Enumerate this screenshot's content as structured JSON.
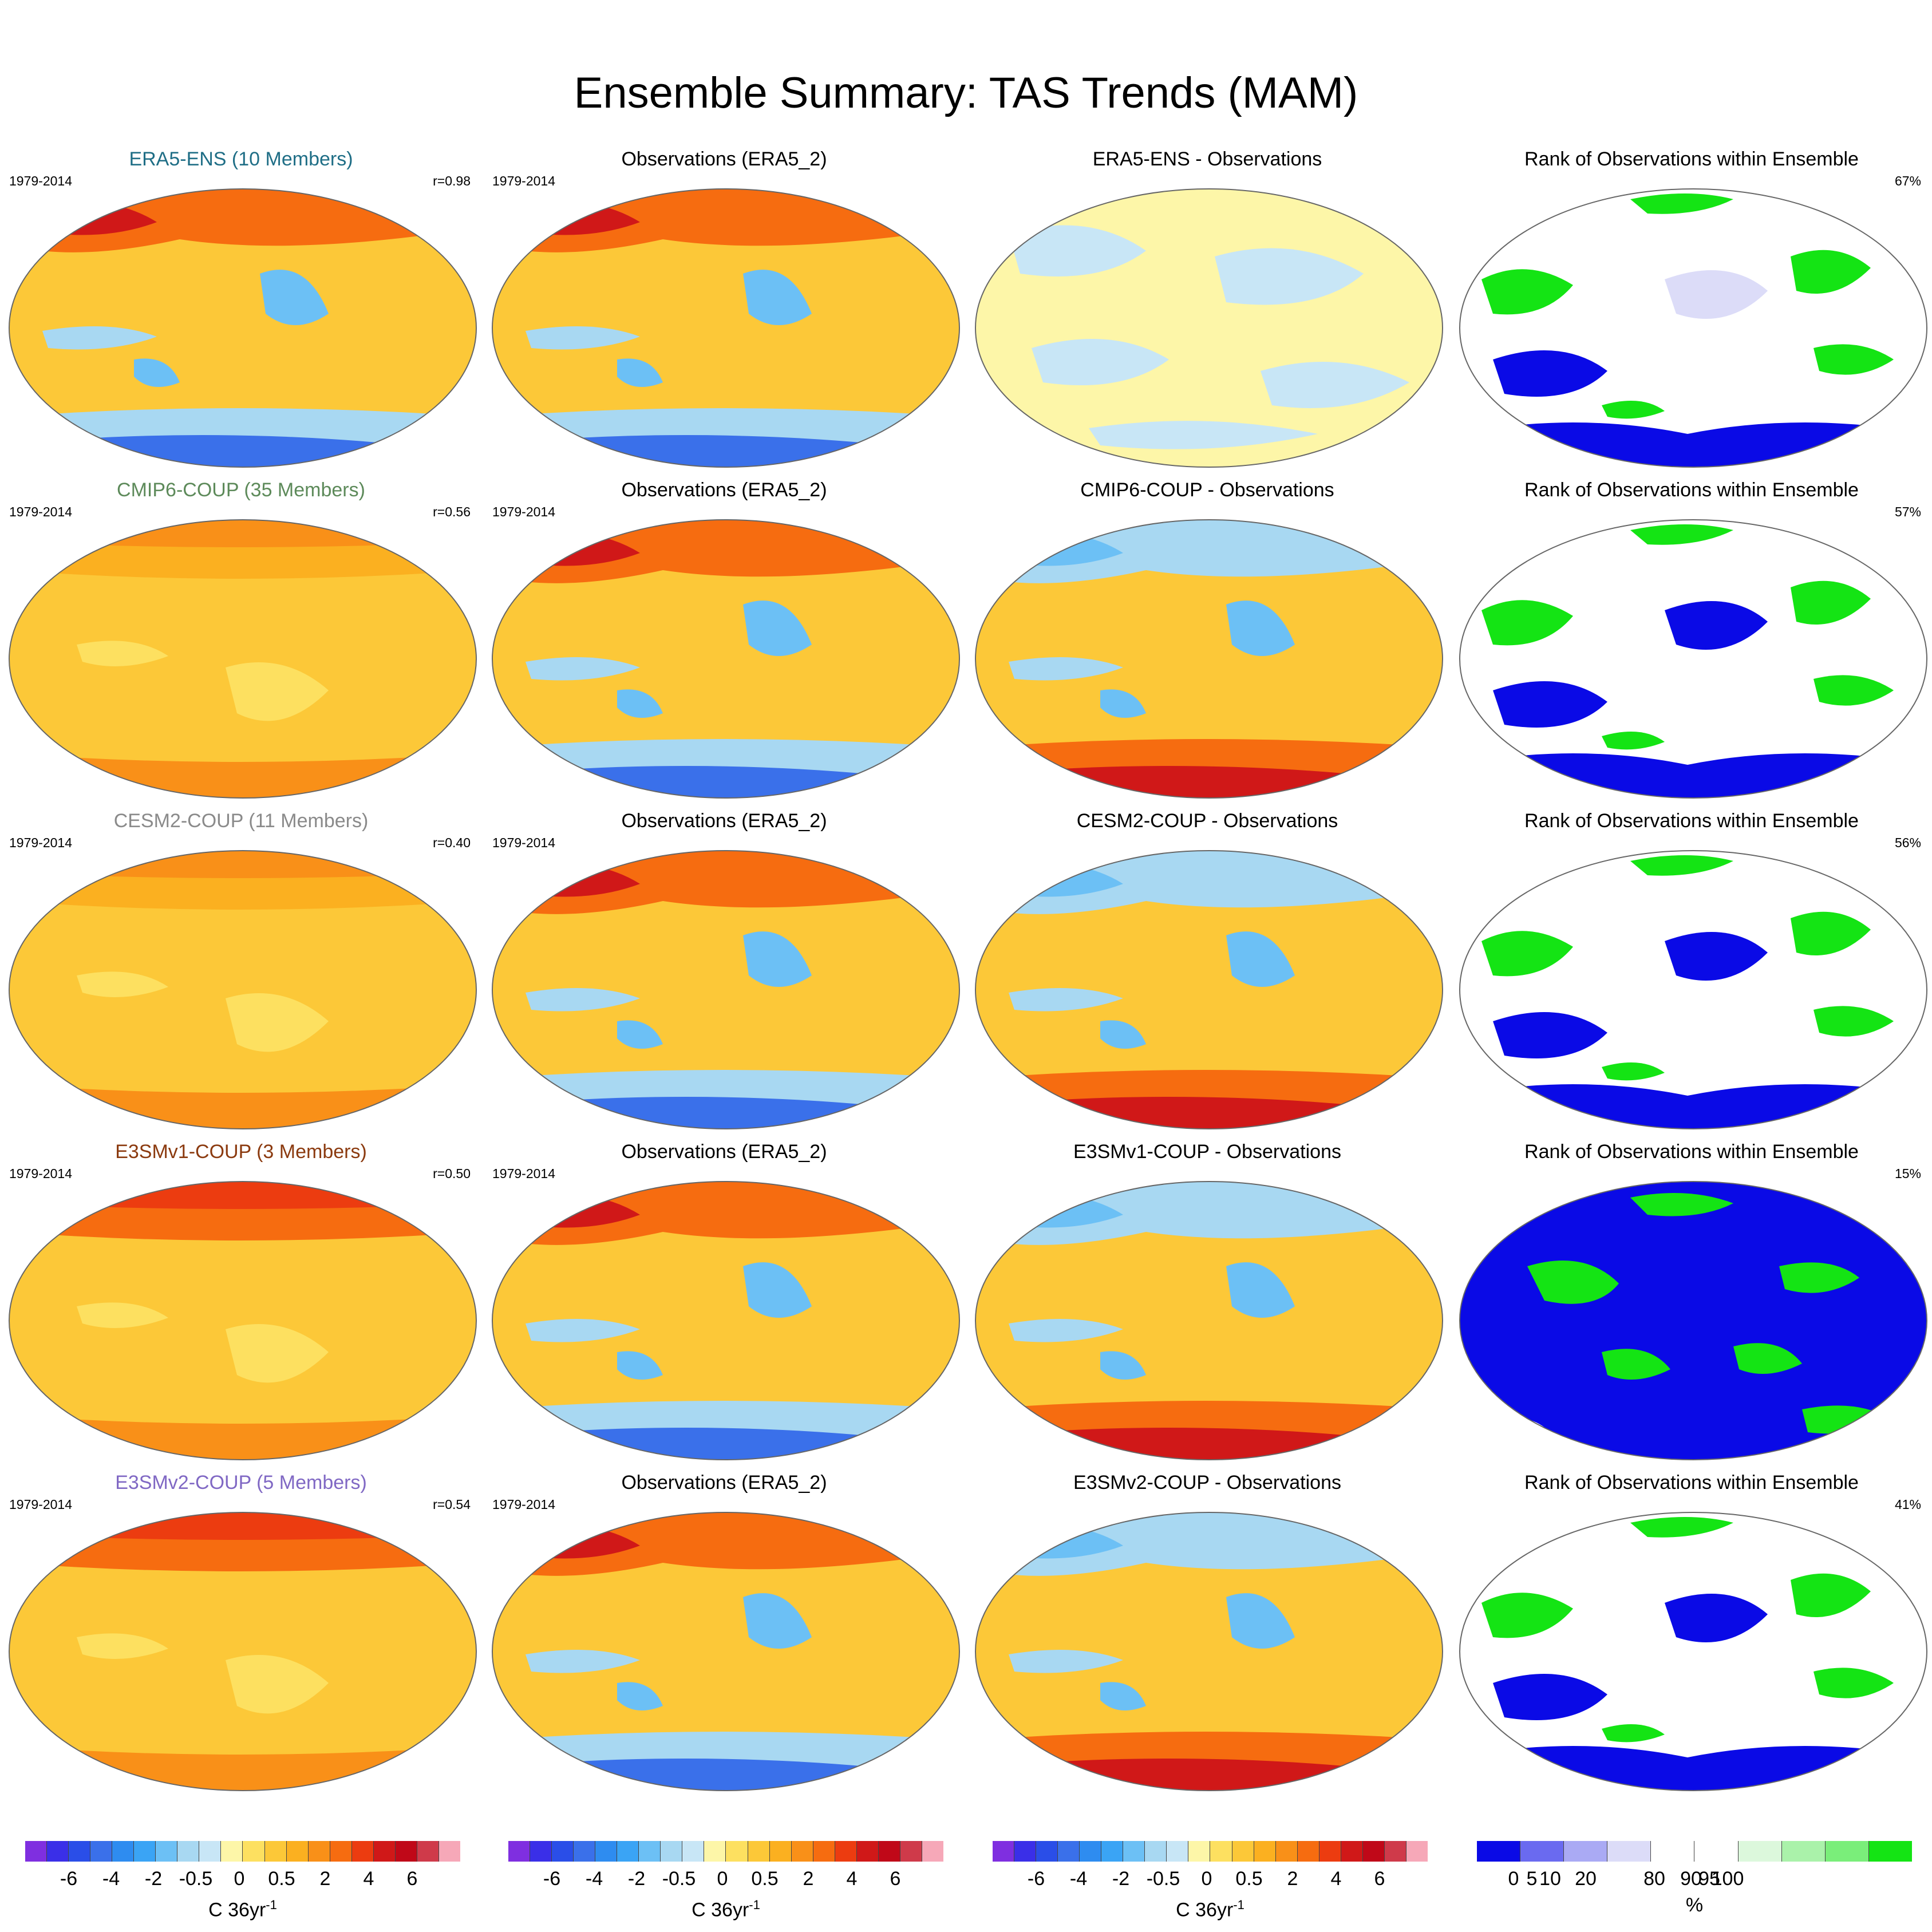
{
  "title": "Ensemble Summary: TAS Trends (MAM)",
  "rows": [
    {
      "model": {
        "label": "ERA5-ENS (10 Members)",
        "color": "#1f6e86",
        "period": "1979-2014",
        "corr": "r=0.98"
      },
      "obs": {
        "label": "Observations (ERA5_2)",
        "period": "1979-2014"
      },
      "diff": {
        "label": "ERA5-ENS - Observations"
      },
      "rank": {
        "label": "Rank of Observations within Ensemble",
        "pct": "67%"
      }
    },
    {
      "model": {
        "label": "CMIP6-COUP (35 Members)",
        "color": "#5d8a5a",
        "period": "1979-2014",
        "corr": "r=0.56"
      },
      "obs": {
        "label": "Observations (ERA5_2)",
        "period": "1979-2014"
      },
      "diff": {
        "label": "CMIP6-COUP - Observations"
      },
      "rank": {
        "label": "Rank of Observations within Ensemble",
        "pct": "57%"
      }
    },
    {
      "model": {
        "label": "CESM2-COUP (11 Members)",
        "color": "#8a8a8a",
        "period": "1979-2014",
        "corr": "r=0.40"
      },
      "obs": {
        "label": "Observations (ERA5_2)",
        "period": "1979-2014"
      },
      "diff": {
        "label": "CESM2-COUP - Observations"
      },
      "rank": {
        "label": "Rank of Observations within Ensemble",
        "pct": "56%"
      }
    },
    {
      "model": {
        "label": "E3SMv1-COUP (3 Members)",
        "color": "#8b3a0f",
        "period": "1979-2014",
        "corr": "r=0.50"
      },
      "obs": {
        "label": "Observations (ERA5_2)",
        "period": "1979-2014"
      },
      "diff": {
        "label": "E3SMv1-COUP - Observations"
      },
      "rank": {
        "label": "Rank of Observations within Ensemble",
        "pct": "15%"
      }
    },
    {
      "model": {
        "label": "E3SMv2-COUP (5 Members)",
        "color": "#8068c4",
        "period": "1979-2014",
        "corr": "r=0.54"
      },
      "obs": {
        "label": "Observations (ERA5_2)",
        "period": "1979-2014"
      },
      "diff": {
        "label": "E3SMv2-COUP - Observations"
      },
      "rank": {
        "label": "Rank of Observations within Ensemble",
        "pct": "41%"
      }
    }
  ],
  "colorbars": {
    "trend": {
      "colors": [
        "#7f2fe0",
        "#3a2fe8",
        "#2a4ee8",
        "#3a70ea",
        "#2e8cf0",
        "#3aa4f5",
        "#6cc0f5",
        "#a8d8f2",
        "#c8e6f6",
        "#fdf6a8",
        "#fde060",
        "#fcc838",
        "#fbb020",
        "#f99018",
        "#f66c10",
        "#ec3c10",
        "#d01818",
        "#c00818",
        "#cf3a4a",
        "#f6a8b8"
      ],
      "ticks": [
        "-6",
        "-4",
        "-2",
        "-0.5",
        "0",
        "0.5",
        "2",
        "4",
        "6"
      ],
      "unit": "C 36yr",
      "unit_sup": "-1"
    },
    "rank": {
      "colors": [
        "#0a0ae6",
        "#6a6af0",
        "#aaaaf4",
        "#dcdcf8",
        "#ffffff",
        "#ffffff",
        "#dcf8dc",
        "#aaf2aa",
        "#7aee7a",
        "#14e414"
      ],
      "ticks": [
        "0",
        "5",
        "10",
        "20",
        "80",
        "90",
        "95",
        "100"
      ],
      "unit": "%"
    }
  }
}
